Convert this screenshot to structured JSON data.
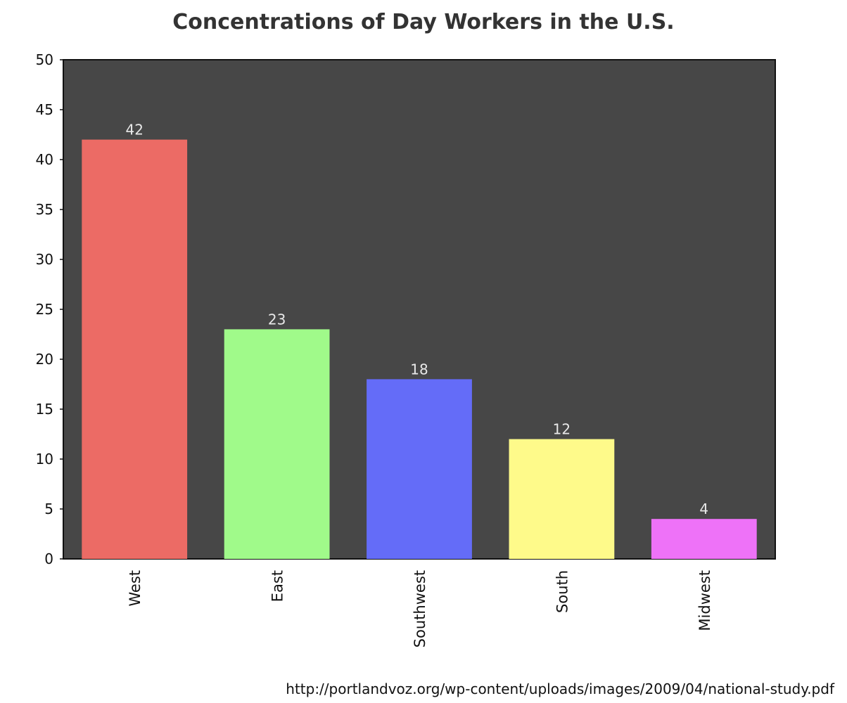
{
  "chart_data": {
    "type": "bar",
    "title": "Concentrations of Day Workers in the U.S.",
    "xlabel": "",
    "ylabel": "",
    "categories": [
      "West",
      "East",
      "Southwest",
      "South",
      "Midwest"
    ],
    "values": [
      42,
      23,
      18,
      12,
      4
    ],
    "data_labels": [
      "42",
      "23",
      "18",
      "12",
      "4"
    ],
    "colors": [
      "#ec6b65",
      "#a0fa8a",
      "#646cf8",
      "#fefa8a",
      "#ee72f8"
    ],
    "ylim": [
      0,
      50
    ],
    "yticks": [
      0,
      5,
      10,
      15,
      20,
      25,
      30,
      35,
      40,
      45,
      50
    ],
    "ytick_labels": [
      "0",
      "5",
      "10",
      "15",
      "20",
      "25",
      "30",
      "35",
      "40",
      "45",
      "50"
    ],
    "grid": false,
    "plot_background": "#474747",
    "data_label_color": "#e8e8e8"
  },
  "source": "http://portlandvoz.org/wp-content/uploads/images/2009/04/national-study.pdf"
}
